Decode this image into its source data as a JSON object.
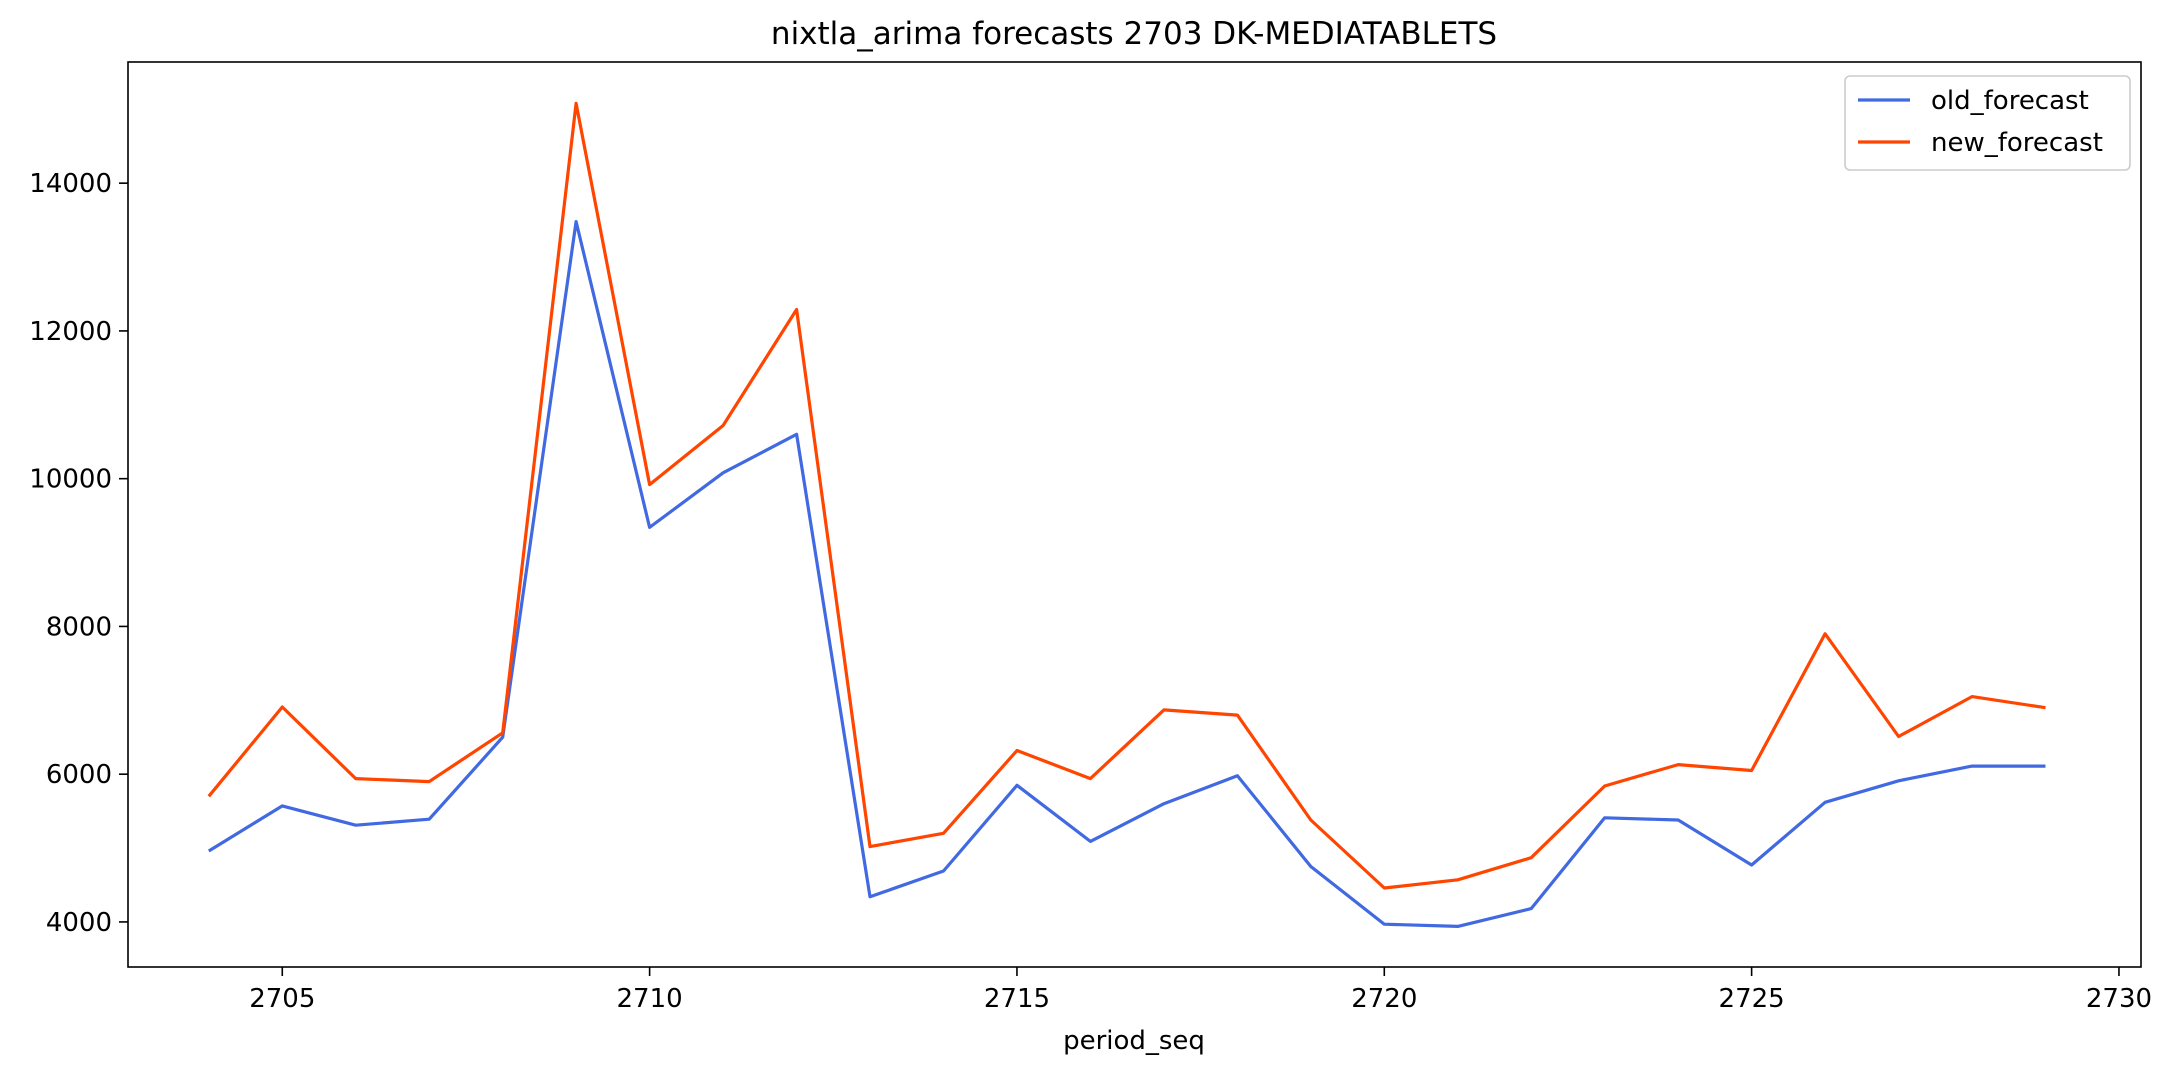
{
  "chart_data": {
    "type": "line",
    "title": "nixtla_arima forecasts 2703 DK-MEDIATABLETS",
    "xlabel": "period_seq",
    "ylabel": "",
    "x": [
      2704,
      2705,
      2706,
      2707,
      2708,
      2709,
      2710,
      2711,
      2712,
      2713,
      2714,
      2715,
      2716,
      2717,
      2718,
      2719,
      2720,
      2721,
      2722,
      2723,
      2724,
      2725,
      2726,
      2727,
      2728,
      2729
    ],
    "series": [
      {
        "name": "old_forecast",
        "color": "#4169e1",
        "values": [
          4960,
          5570,
          5310,
          5390,
          6500,
          13480,
          9340,
          10080,
          10600,
          4340,
          4690,
          5850,
          5090,
          5600,
          5980,
          4750,
          3970,
          3940,
          4180,
          5410,
          5380,
          4770,
          5620,
          5910,
          6110,
          6110
        ]
      },
      {
        "name": "new_forecast",
        "color": "#ff4500",
        "values": [
          5700,
          6910,
          5940,
          5900,
          6560,
          15080,
          9920,
          10720,
          12290,
          5020,
          5200,
          6320,
          5940,
          6870,
          6800,
          5380,
          4460,
          4570,
          4870,
          5840,
          6130,
          6050,
          7900,
          6510,
          7050,
          6900
        ]
      }
    ],
    "xlim": [
      2702.9,
      2730.3
    ],
    "ylim": [
      3390,
      15640
    ],
    "xticks": [
      2705,
      2710,
      2715,
      2720,
      2725,
      2730
    ],
    "yticks": [
      4000,
      6000,
      8000,
      10000,
      12000,
      14000
    ],
    "grid": false,
    "legend_position": "top-right"
  }
}
